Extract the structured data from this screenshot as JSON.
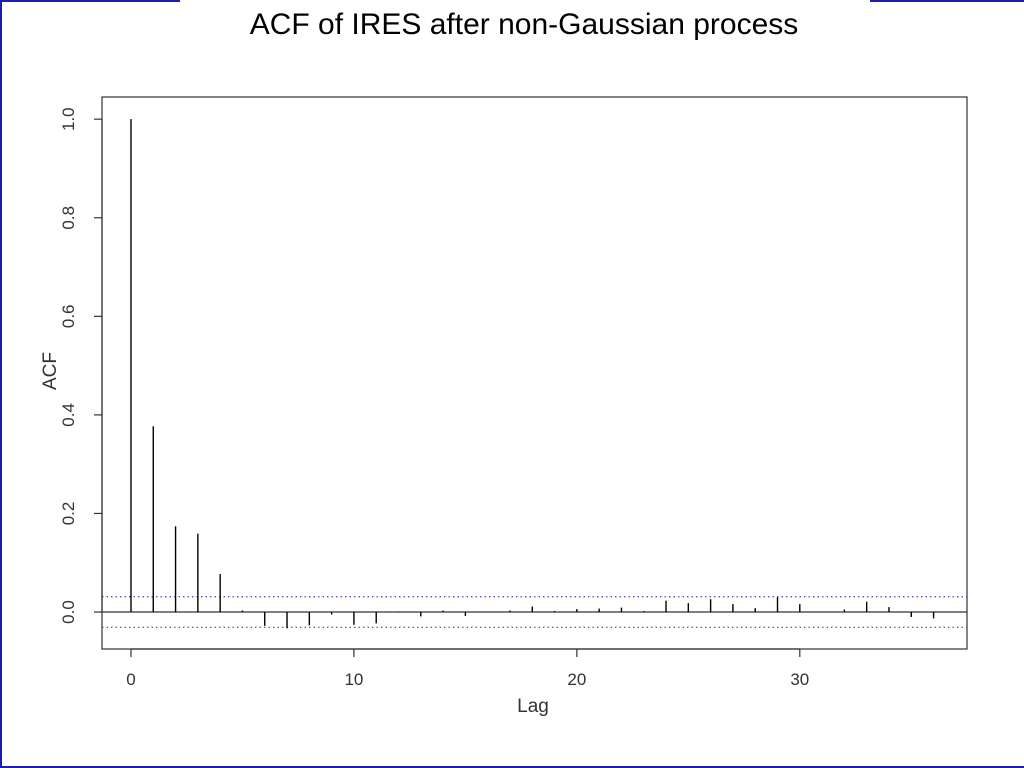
{
  "slide": {
    "title": "ACF of IRES after non-Gaussian process",
    "frame_color": "#1c1cb4"
  },
  "chart_data": {
    "type": "bar",
    "title": "",
    "xlabel": "Lag",
    "ylabel": "ACF",
    "x_ticks": [
      0,
      10,
      20,
      30
    ],
    "y_ticks": [
      0.0,
      0.2,
      0.4,
      0.6,
      0.8,
      1.0
    ],
    "y_tick_labels": [
      "0.0",
      "0.2",
      "0.4",
      "0.6",
      "0.8",
      "1.0"
    ],
    "xlim": [
      -1.3,
      37.5
    ],
    "ylim": [
      -0.075,
      1.045
    ],
    "lags": [
      0,
      1,
      2,
      3,
      4,
      5,
      6,
      7,
      8,
      9,
      10,
      11,
      12,
      13,
      14,
      15,
      16,
      17,
      18,
      19,
      20,
      21,
      22,
      23,
      24,
      25,
      26,
      27,
      28,
      29,
      30,
      31,
      32,
      33,
      34,
      35,
      36
    ],
    "values": [
      1.0,
      0.377,
      0.174,
      0.159,
      0.077,
      0.003,
      -0.028,
      -0.033,
      -0.027,
      -0.005,
      -0.026,
      -0.023,
      0.001,
      -0.009,
      0.003,
      -0.008,
      0.0,
      0.003,
      0.011,
      0.002,
      0.006,
      0.007,
      0.009,
      0.002,
      0.023,
      0.018,
      0.026,
      0.016,
      0.008,
      0.03,
      0.016,
      0.0,
      0.005,
      0.021,
      0.01,
      -0.01,
      -0.013
    ],
    "confidence_bound": 0.031,
    "bar_color": "#000000",
    "ci_color": "#3a4fb0"
  }
}
